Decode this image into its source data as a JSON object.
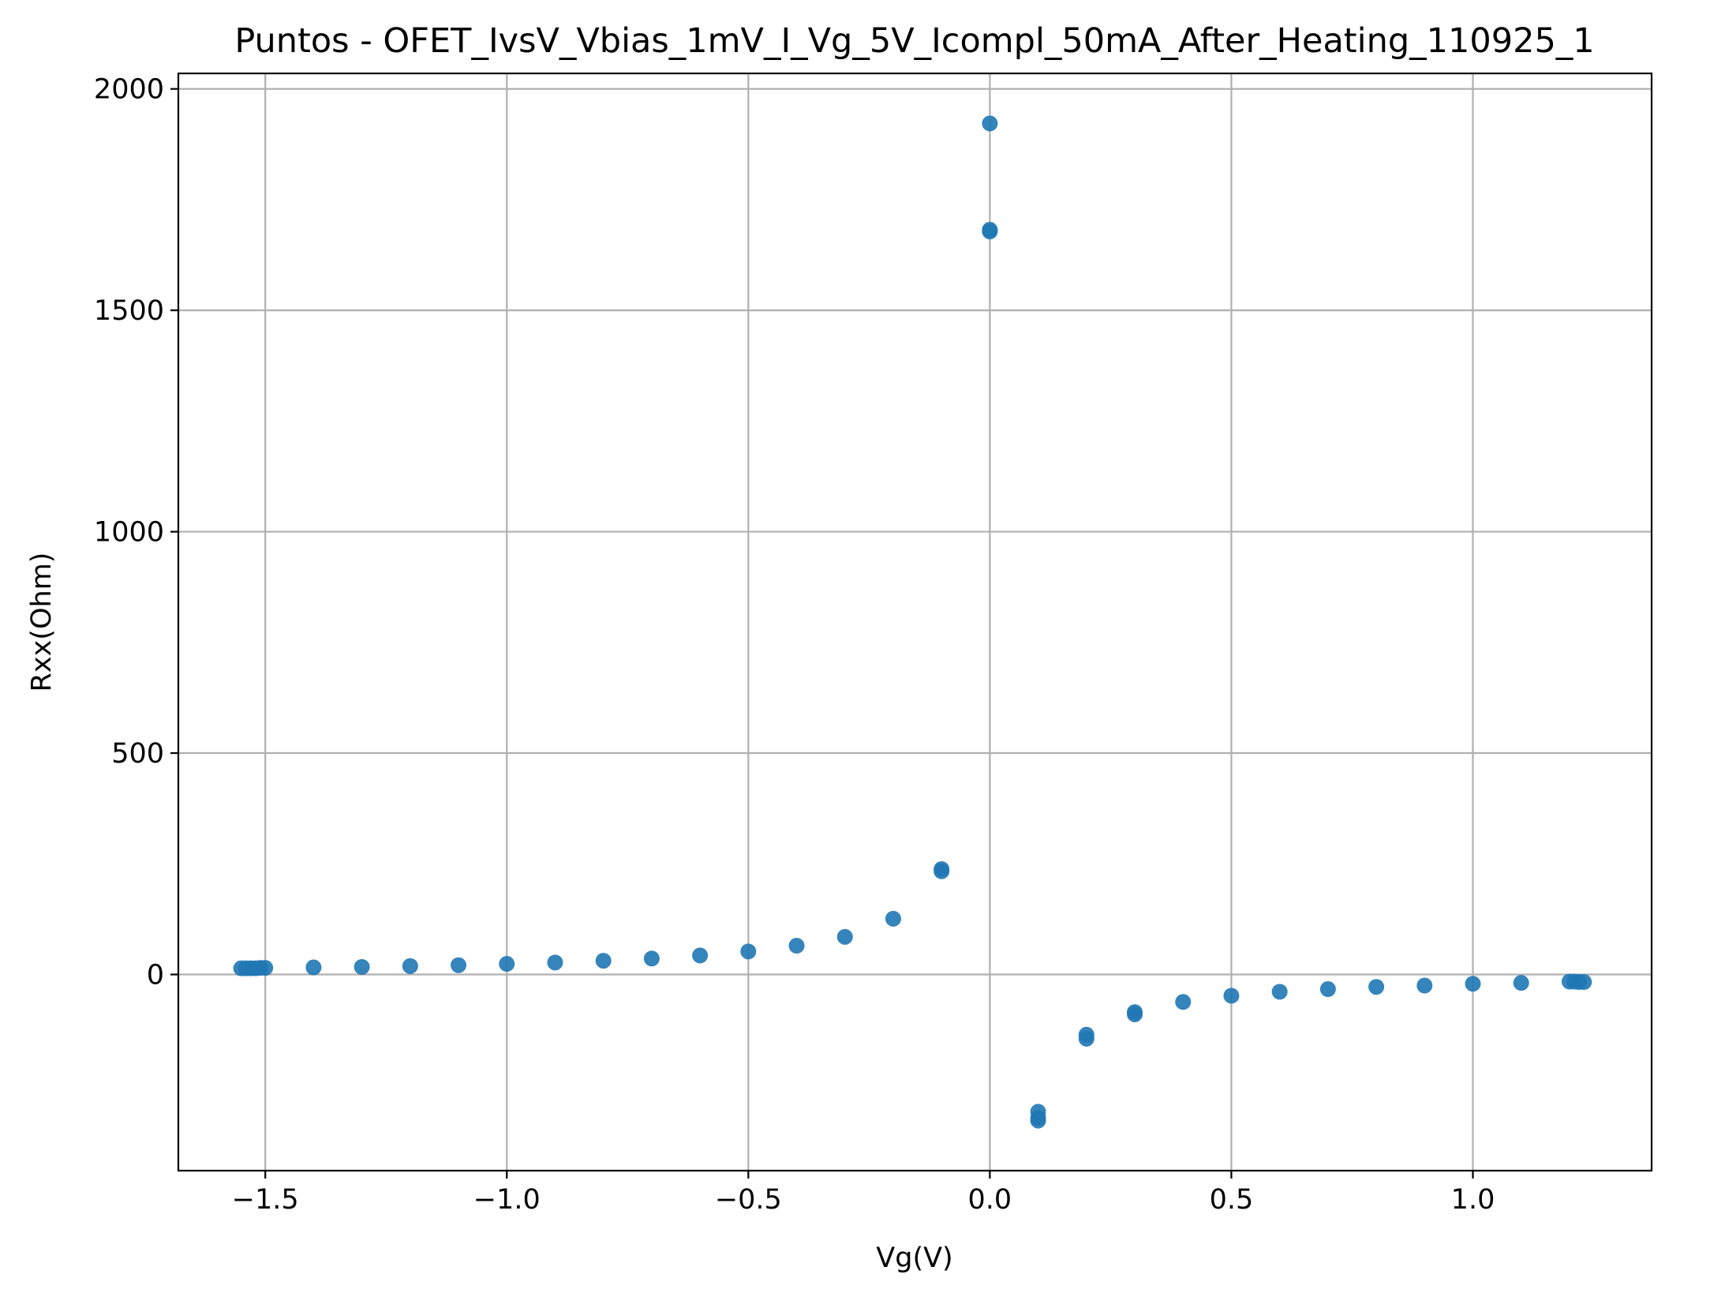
{
  "chart_data": {
    "type": "scatter",
    "title": "Puntos - OFET_IvsV_Vbias_1mV_I_Vg_5V_Icompl_50mA_After_Heating_110925_1",
    "xlabel": "Vg(V)",
    "ylabel": "Rxx(Ohm)",
    "xlim": [
      -1.68,
      1.37
    ],
    "ylim": [
      -443,
      2035
    ],
    "x_ticks": [
      -1.5,
      -1.0,
      -0.5,
      0.0,
      0.5,
      1.0
    ],
    "x_tick_labels": [
      "−1.5",
      "−1.0",
      "−0.5",
      "0.0",
      "0.5",
      "1.0"
    ],
    "y_ticks": [
      0,
      500,
      1000,
      1500,
      2000
    ],
    "y_tick_labels": [
      "0",
      "500",
      "1000",
      "1500",
      "2000"
    ],
    "grid": true,
    "marker_color": "#1f77b4",
    "series": [
      {
        "x": [
          -1.55,
          -1.54,
          -1.53,
          -1.52,
          -1.51,
          -1.5,
          -1.4,
          -1.3,
          -1.2,
          -1.1,
          -1.0,
          -0.9,
          -0.8,
          -0.7,
          -0.6,
          -0.5,
          -0.4,
          -0.3,
          -0.2,
          -0.1,
          -0.1,
          0.0,
          0.0,
          0.0,
          0.1,
          0.1,
          0.1,
          0.2,
          0.2,
          0.3,
          0.3,
          0.4,
          0.5,
          0.6,
          0.7,
          0.8,
          0.9,
          1.0,
          1.1,
          1.2,
          1.21,
          1.22,
          1.23
        ],
        "y": [
          14,
          14,
          14,
          14,
          15,
          15,
          16,
          17,
          19,
          21,
          24,
          27,
          31,
          36,
          43,
          52,
          65,
          85,
          126,
          238,
          233,
          1922,
          1682,
          1678,
          -310,
          -324,
          -330,
          -136,
          -145,
          -85,
          -90,
          -62,
          -48,
          -39,
          -33,
          -28,
          -25,
          -21,
          -19,
          -16,
          -16,
          -17,
          -17
        ]
      }
    ]
  }
}
